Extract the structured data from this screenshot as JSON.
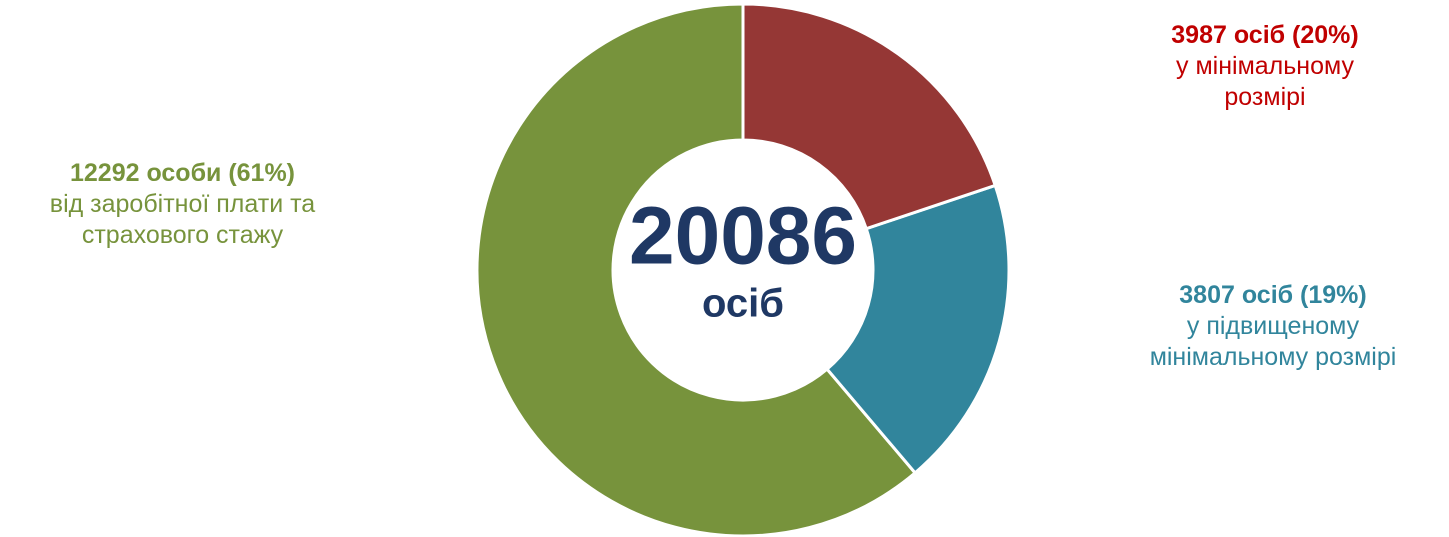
{
  "chart_data": {
    "type": "pie",
    "categories": [
      "у мінімальному розмірі",
      "у підвищеному мінімальному розмірі",
      "від заробітної плати та страхового стажу"
    ],
    "values": [
      3987,
      3807,
      12292
    ],
    "value_labels": [
      "3987 осіб (20%)",
      "3807 осіб (19%)",
      "12292 особи (61%)"
    ],
    "colors": [
      "#953735",
      "#31859c",
      "#77933c"
    ],
    "label_colors": [
      "#c00000",
      "#31859c",
      "#77933c"
    ],
    "total": 20086,
    "total_label": "осіб"
  }
}
